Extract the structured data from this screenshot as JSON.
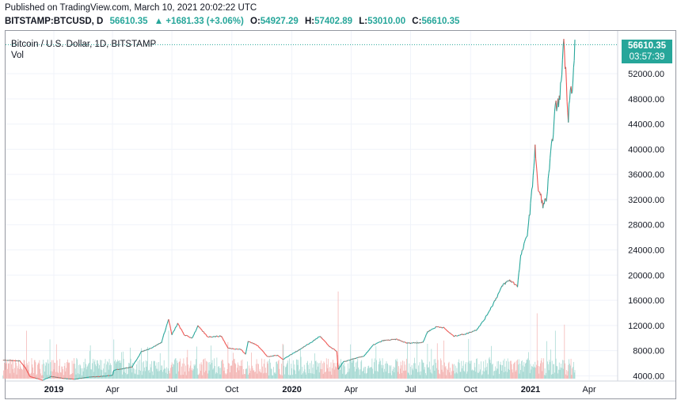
{
  "published": "Published on TradingView.com, March 10, 2021 20:02:22 UTC",
  "header": {
    "symbol": "BITSTAMP:BTCUSD, D",
    "last": "56610.35",
    "change": "▲ +1681.33 (+3.06%)",
    "o_label": "O:",
    "o_value": "54927.29",
    "h_label": "H:",
    "h_value": "57402.89",
    "l_label": "L:",
    "l_value": "53010.00",
    "c_label": "C:",
    "c_value": "56610.35"
  },
  "legend": {
    "title": "Bitcoin / U.S. Dollar, 1D, BITSTAMP",
    "vol": "Vol"
  },
  "price_tag": {
    "price": "56610.35",
    "countdown": "03:57:39"
  },
  "colors": {
    "up": "#26a69a",
    "down": "#ef5350",
    "up_vol": "#9fd6cf",
    "down_vol": "#f3b0ae",
    "grid": "#f0f3fa",
    "axis_text": "#131722"
  },
  "chart_data": {
    "type": "line",
    "title": "Bitcoin / U.S. Dollar, 1D, BITSTAMP",
    "xlabel": "",
    "ylabel": "",
    "ylim": [
      3300,
      58800
    ],
    "y_ticks": [
      "4000.00",
      "8000.00",
      "12000.00",
      "16000.00",
      "20000.00",
      "24000.00",
      "28000.00",
      "32000.00",
      "36000.00",
      "40000.00",
      "44000.00",
      "48000.00",
      "52000.00"
    ],
    "y_tick_values": [
      4000,
      8000,
      12000,
      16000,
      20000,
      24000,
      28000,
      32000,
      36000,
      40000,
      44000,
      48000,
      52000
    ],
    "x_ticks": [
      {
        "label": "2019",
        "date": "2019-01-01"
      },
      {
        "label": "Apr",
        "date": "2019-04-01"
      },
      {
        "label": "Jul",
        "date": "2019-07-01"
      },
      {
        "label": "Oct",
        "date": "2019-10-01"
      },
      {
        "label": "2020",
        "date": "2020-01-01"
      },
      {
        "label": "Apr",
        "date": "2020-04-01"
      },
      {
        "label": "Jul",
        "date": "2020-07-01"
      },
      {
        "label": "Oct",
        "date": "2020-10-01"
      },
      {
        "label": "2021",
        "date": "2021-01-01"
      },
      {
        "label": "Apr",
        "date": "2021-04-01"
      }
    ],
    "x_range": [
      "2018-10-15",
      "2021-04-30"
    ],
    "series": [
      {
        "values": [
          [
            "2018-10-15",
            6500
          ],
          [
            "2018-11-10",
            6350
          ],
          [
            "2018-11-20",
            5000
          ],
          [
            "2018-11-25",
            3900
          ],
          [
            "2018-12-15",
            3300
          ],
          [
            "2018-12-28",
            3900
          ],
          [
            "2019-01-15",
            3600
          ],
          [
            "2019-02-01",
            3450
          ],
          [
            "2019-02-24",
            3800
          ],
          [
            "2019-03-15",
            3900
          ],
          [
            "2019-04-01",
            4100
          ],
          [
            "2019-04-03",
            4900
          ],
          [
            "2019-05-01",
            5400
          ],
          [
            "2019-05-15",
            7800
          ],
          [
            "2019-06-01",
            8500
          ],
          [
            "2019-06-15",
            9300
          ],
          [
            "2019-06-26",
            13000
          ],
          [
            "2019-07-01",
            10500
          ],
          [
            "2019-07-10",
            12300
          ],
          [
            "2019-07-20",
            10500
          ],
          [
            "2019-08-01",
            10000
          ],
          [
            "2019-08-10",
            11900
          ],
          [
            "2019-08-25",
            10200
          ],
          [
            "2019-09-15",
            10300
          ],
          [
            "2019-09-25",
            8400
          ],
          [
            "2019-10-15",
            8200
          ],
          [
            "2019-10-22",
            7400
          ],
          [
            "2019-10-26",
            9500
          ],
          [
            "2019-11-10",
            8800
          ],
          [
            "2019-11-25",
            7000
          ],
          [
            "2019-12-10",
            7300
          ],
          [
            "2019-12-18",
            6600
          ],
          [
            "2020-01-10",
            8000
          ],
          [
            "2020-02-01",
            9400
          ],
          [
            "2020-02-13",
            10300
          ],
          [
            "2020-02-28",
            8600
          ],
          [
            "2020-03-10",
            7900
          ],
          [
            "2020-03-12",
            5000
          ],
          [
            "2020-03-20",
            6200
          ],
          [
            "2020-04-01",
            6600
          ],
          [
            "2020-04-20",
            7100
          ],
          [
            "2020-05-05",
            8900
          ],
          [
            "2020-05-20",
            9600
          ],
          [
            "2020-06-10",
            9800
          ],
          [
            "2020-06-25",
            9200
          ],
          [
            "2020-07-20",
            9300
          ],
          [
            "2020-07-27",
            11000
          ],
          [
            "2020-08-10",
            11800
          ],
          [
            "2020-08-20",
            11700
          ],
          [
            "2020-09-05",
            10300
          ],
          [
            "2020-09-25",
            10700
          ],
          [
            "2020-10-10",
            11300
          ],
          [
            "2020-10-22",
            12900
          ],
          [
            "2020-11-05",
            15500
          ],
          [
            "2020-11-20",
            18500
          ],
          [
            "2020-11-30",
            19200
          ],
          [
            "2020-12-12",
            18300
          ],
          [
            "2020-12-17",
            23000
          ],
          [
            "2020-12-27",
            26500
          ],
          [
            "2021-01-03",
            33000
          ],
          [
            "2021-01-08",
            40500
          ],
          [
            "2021-01-12",
            34000
          ],
          [
            "2021-01-21",
            31000
          ],
          [
            "2021-01-26",
            32500
          ],
          [
            "2021-02-08",
            46500
          ],
          [
            "2021-02-15",
            48000
          ],
          [
            "2021-02-21",
            57500
          ],
          [
            "2021-02-28",
            45000
          ],
          [
            "2021-03-03",
            50500
          ],
          [
            "2021-03-06",
            48500
          ],
          [
            "2021-03-10",
            56610
          ]
        ]
      }
    ],
    "volume_spikes": [
      [
        "2018-11-20",
        0.55
      ],
      [
        "2019-04-03",
        0.45
      ],
      [
        "2019-05-15",
        0.35
      ],
      [
        "2019-06-26",
        0.55
      ],
      [
        "2019-09-25",
        0.42
      ],
      [
        "2020-01-15",
        0.25
      ],
      [
        "2020-03-12",
        1.0
      ],
      [
        "2020-07-27",
        0.4
      ],
      [
        "2021-01-11",
        0.75
      ],
      [
        "2021-02-08",
        0.55
      ],
      [
        "2021-02-22",
        0.62
      ]
    ],
    "last_price": 56610.35
  }
}
